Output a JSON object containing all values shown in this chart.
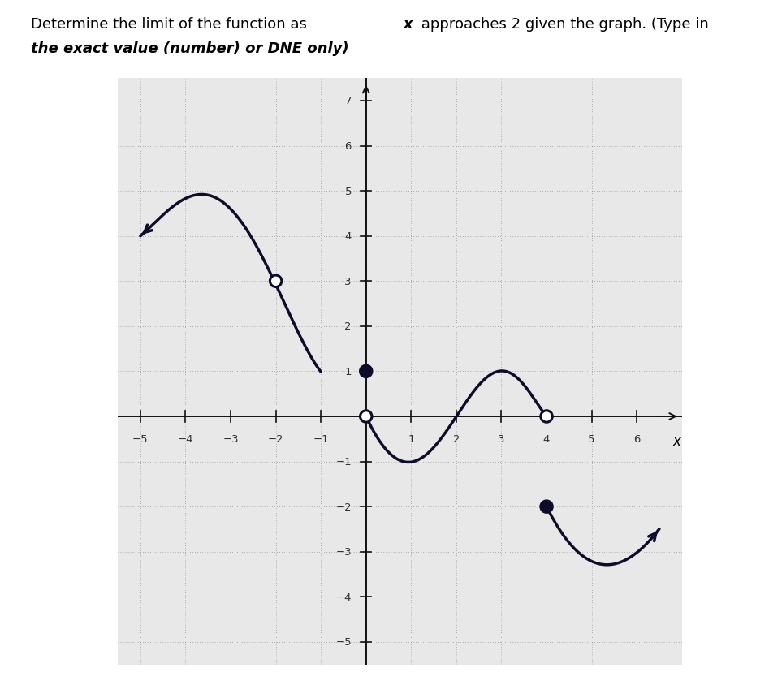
{
  "bg_color": "#e8e8e8",
  "plot_bg": "#e8e8e8",
  "grid_color": "#888888",
  "axis_color": "#111111",
  "curve_color": "#0d0d2b",
  "xlim": [
    -5.5,
    7.0
  ],
  "ylim": [
    -5.5,
    7.5
  ],
  "xtick_vals": [
    -5,
    -4,
    -3,
    -2,
    -1,
    1,
    2,
    3,
    4,
    5,
    6
  ],
  "ytick_vals": [
    -5,
    -4,
    -3,
    -2,
    -1,
    1,
    2,
    3,
    4,
    5,
    6,
    7
  ],
  "open_circles": [
    [
      -2,
      3
    ],
    [
      0,
      0
    ],
    [
      4,
      0
    ]
  ],
  "filled_circles": [
    [
      0,
      1
    ],
    [
      4,
      -2
    ]
  ],
  "seg1_x": [
    -5.0,
    -4.0,
    -3.5,
    -3.0,
    -2.0,
    -1.5,
    -1.0
  ],
  "seg1_y": [
    4.0,
    4.8,
    5.0,
    4.5,
    3.0,
    1.8,
    1.0
  ],
  "seg2_x": [
    0.0,
    0.5,
    1.0,
    1.5,
    2.0,
    2.5,
    3.0,
    3.5,
    4.0
  ],
  "seg2_y": [
    0.0,
    -0.8,
    -1.0,
    -0.7,
    0.0,
    0.7,
    1.0,
    0.7,
    0.0
  ],
  "seg3_x": [
    4.0,
    4.5,
    5.0,
    5.5,
    6.0,
    6.5
  ],
  "seg3_y": [
    -2.0,
    -2.8,
    -3.2,
    -3.3,
    -3.0,
    -2.5
  ],
  "lw": 2.5,
  "circle_r": 0.13,
  "header_text1": "Determine the limit of the function as ",
  "header_x": "x",
  "header_text2": " approaches 2 given the graph. (Type in",
  "header_text3": "the exact value (number) or DNE only)",
  "xlabel": "x"
}
